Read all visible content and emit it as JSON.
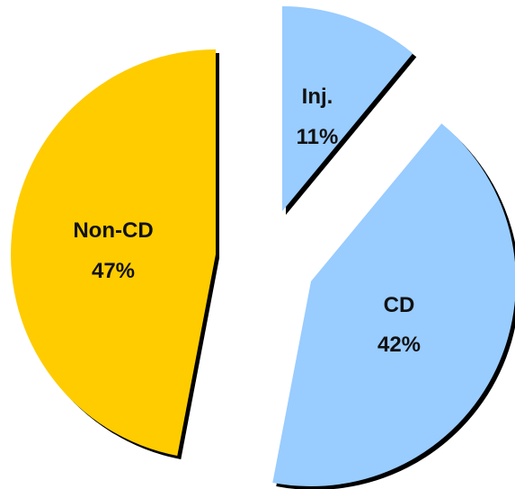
{
  "chart_data": {
    "type": "pie",
    "title": "",
    "exploded": true,
    "slices": [
      {
        "label": "Inj.",
        "percent_label": "11%",
        "value": 11,
        "color": "#99ccff"
      },
      {
        "label": "CD",
        "percent_label": "42%",
        "value": 42,
        "color": "#99ccff"
      },
      {
        "label": "Non-CD",
        "percent_label": "47%",
        "value": 47,
        "color": "#ffcc00"
      }
    ],
    "shadow_color": "#000000"
  }
}
